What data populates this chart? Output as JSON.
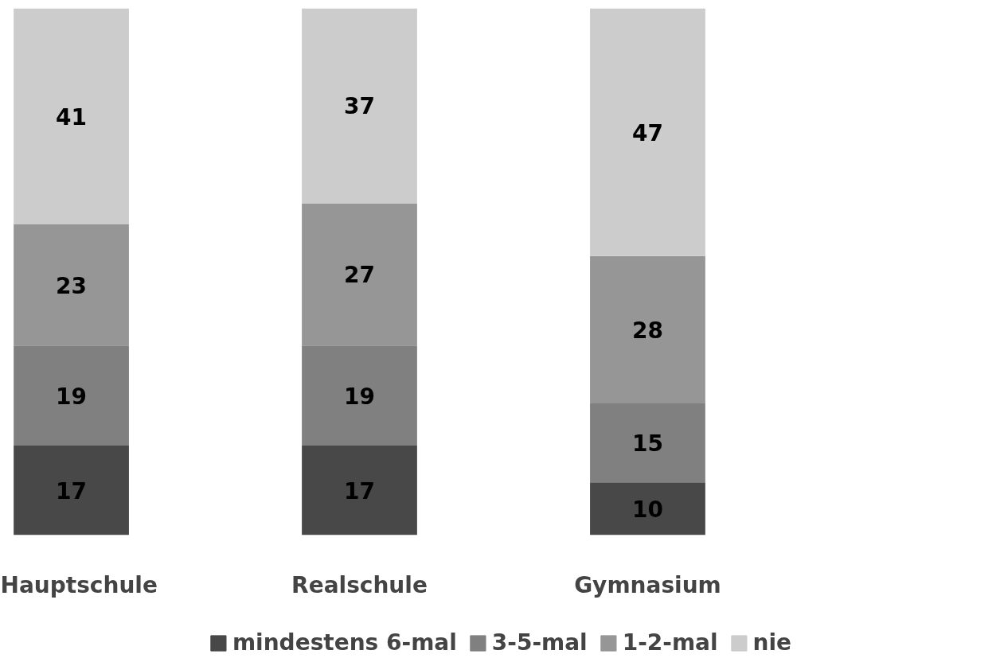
{
  "chart_data": {
    "type": "bar",
    "stacked": true,
    "data_labels": true,
    "legend": "bottom",
    "grid": false,
    "categories": [
      "Hauptschule",
      "Realschule",
      "Gymnasium"
    ],
    "series": [
      {
        "name": "mindestens 6-mal",
        "color": "#484848",
        "values": [
          17,
          17,
          10
        ]
      },
      {
        "name": "3-5-mal",
        "color": "#808080",
        "values": [
          19,
          19,
          15
        ]
      },
      {
        "name": "1-2-mal",
        "color": "#969696",
        "values": [
          23,
          27,
          28
        ]
      },
      {
        "name": "nie",
        "color": "#cccccc",
        "values": [
          41,
          37,
          47
        ]
      }
    ]
  }
}
